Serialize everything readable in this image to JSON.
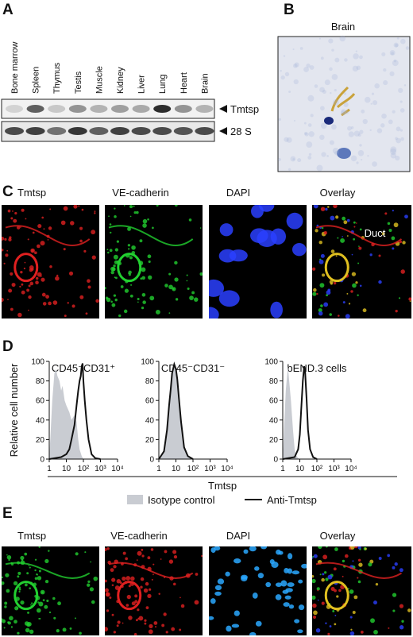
{
  "panel_a": {
    "label": "A",
    "lanes": [
      "Bone marrow",
      "Spleen",
      "Thymus",
      "Testis",
      "Muscle",
      "Kidney",
      "Liver",
      "Lung",
      "Heart",
      "Brain"
    ],
    "bands": [
      "Tmtsp",
      "28 S"
    ]
  },
  "panel_b": {
    "label": "B",
    "title": "Brain"
  },
  "panel_c": {
    "label": "C",
    "titles": [
      "Tmtsp",
      "VE-cadherin",
      "DAPI",
      "Overlay"
    ],
    "annotation": "Duct"
  },
  "panel_d": {
    "label": "D",
    "xlabel": "Tmtsp",
    "legend": [
      {
        "name": "Isotype control",
        "color": "#c9ccd2"
      },
      {
        "name": "Anti-Tmtsp",
        "color": "#111111"
      }
    ]
  },
  "chart_data": [
    {
      "type": "line",
      "title": "CD45⁻CD31⁺",
      "ylabel": "Relative cell number",
      "xlog": true,
      "xlim": [
        1,
        10000
      ],
      "ylim": [
        0,
        100
      ],
      "xticks": [
        1,
        10,
        {
          "value": 100,
          "label": "10²"
        },
        {
          "value": 1000,
          "label": "10³"
        },
        {
          "value": 10000,
          "label": "10⁴"
        }
      ],
      "yticks": [
        0,
        20,
        40,
        60,
        80,
        100
      ],
      "series": [
        {
          "style": "area",
          "color": "#c9ccd2",
          "x": [
            1,
            1.5,
            2,
            2.5,
            3,
            4,
            5,
            6,
            8,
            10,
            15,
            20,
            30,
            40,
            50,
            60,
            80,
            100
          ],
          "values": [
            0,
            60,
            88,
            92,
            85,
            80,
            70,
            75,
            60,
            55,
            48,
            40,
            45,
            38,
            20,
            10,
            3,
            0
          ]
        },
        {
          "style": "line",
          "color": "#111111",
          "x": [
            1,
            5,
            10,
            15,
            20,
            30,
            40,
            50,
            60,
            70,
            80,
            90,
            100,
            120,
            150,
            200,
            300,
            500,
            1000
          ],
          "values": [
            0,
            2,
            5,
            10,
            20,
            35,
            55,
            70,
            80,
            85,
            95,
            98,
            80,
            60,
            40,
            20,
            5,
            1,
            0
          ]
        }
      ]
    },
    {
      "type": "line",
      "title": "CD45⁻CD31⁻",
      "xlog": true,
      "xlim": [
        1,
        10000
      ],
      "ylim": [
        0,
        100
      ],
      "xticks": [
        1,
        10,
        {
          "value": 100,
          "label": "10²"
        },
        {
          "value": 1000,
          "label": "10³"
        },
        {
          "value": 10000,
          "label": "10⁴"
        }
      ],
      "yticks": [
        0,
        20,
        40,
        60,
        80,
        100
      ],
      "series": [
        {
          "style": "area",
          "color": "#c9ccd2",
          "x": [
            1,
            2,
            3,
            4,
            5,
            6,
            8,
            10,
            12,
            15,
            20,
            30,
            50,
            100
          ],
          "values": [
            0,
            10,
            35,
            60,
            75,
            85,
            95,
            90,
            80,
            60,
            35,
            10,
            2,
            0
          ]
        },
        {
          "style": "line",
          "color": "#111111",
          "x": [
            1,
            2,
            3,
            4,
            5,
            6,
            8,
            10,
            12,
            15,
            20,
            30,
            50,
            100
          ],
          "values": [
            0,
            8,
            30,
            55,
            72,
            88,
            97,
            92,
            82,
            62,
            38,
            12,
            3,
            0
          ]
        }
      ]
    },
    {
      "type": "line",
      "title": "bEND.3 cells",
      "xlog": true,
      "xlim": [
        1,
        10000
      ],
      "ylim": [
        0,
        100
      ],
      "xticks": [
        1,
        10,
        {
          "value": 100,
          "label": "10²"
        },
        {
          "value": 1000,
          "label": "10³"
        },
        {
          "value": 10000,
          "label": "10⁴"
        }
      ],
      "yticks": [
        0,
        20,
        40,
        60,
        80,
        100
      ],
      "series": [
        {
          "style": "area",
          "color": "#c9ccd2",
          "x": [
            1,
            1.5,
            2,
            3,
            4,
            5,
            6,
            8,
            10
          ],
          "values": [
            0,
            70,
            95,
            60,
            30,
            10,
            4,
            1,
            0
          ]
        },
        {
          "style": "line",
          "color": "#111111",
          "x": [
            1,
            5,
            8,
            10,
            12,
            15,
            18,
            20,
            25,
            30,
            40,
            60,
            100
          ],
          "values": [
            0,
            2,
            10,
            25,
            50,
            80,
            95,
            92,
            60,
            30,
            10,
            2,
            0
          ]
        }
      ]
    }
  ],
  "panel_e": {
    "label": "E",
    "titles": [
      "Tmtsp",
      "VE-cadherin",
      "DAPI",
      "Overlay"
    ]
  }
}
